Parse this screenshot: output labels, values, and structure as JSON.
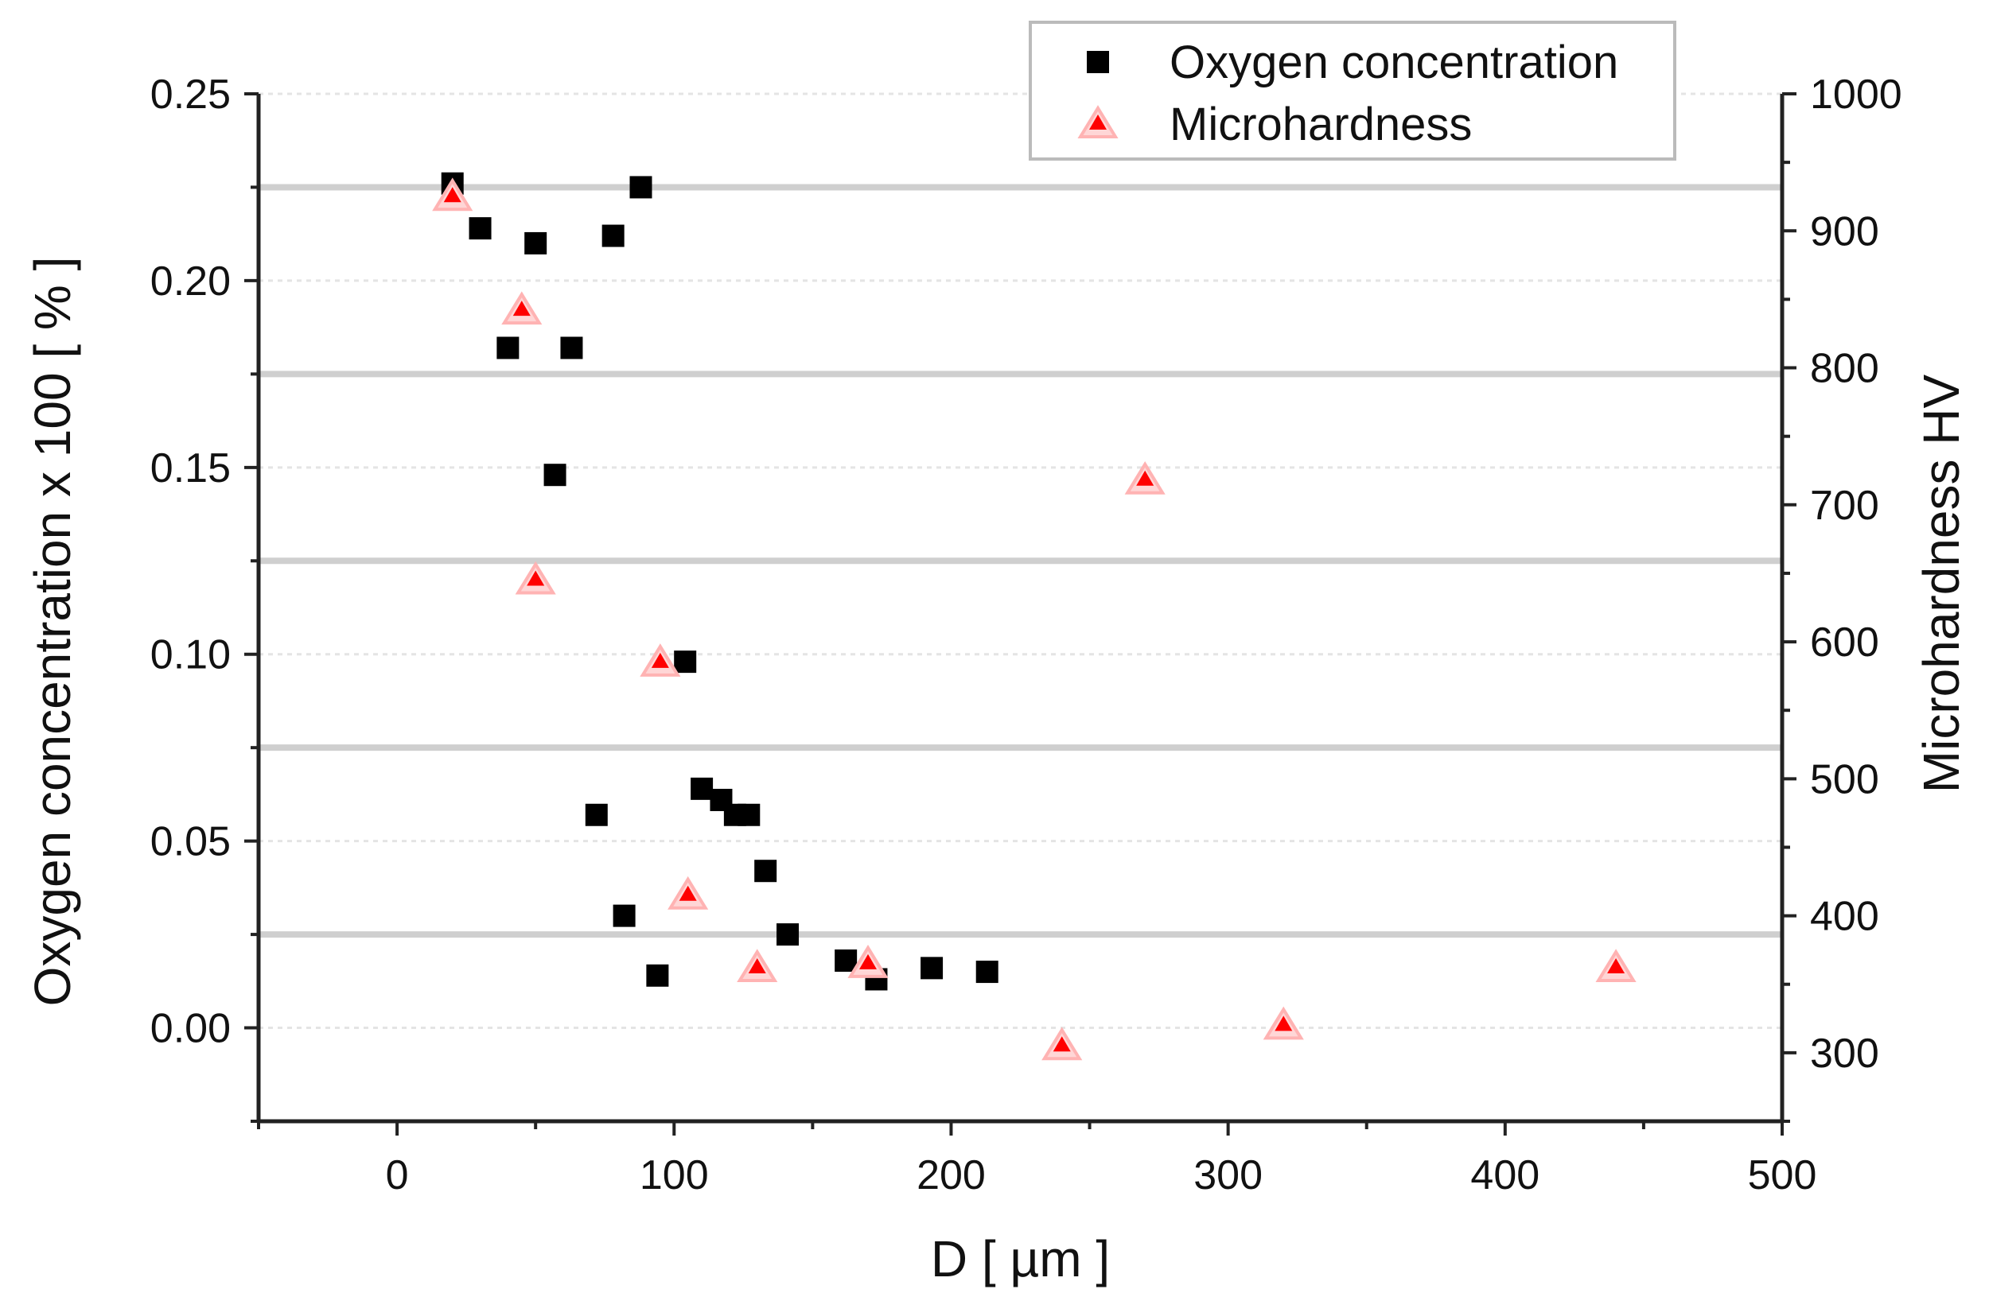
{
  "chart_data": {
    "type": "scatter",
    "title": "",
    "xlabel": "D [ µm ]",
    "ylabel": "Oxygen concentration  x 100  [ % ]",
    "y2label": "Microhardness  HV",
    "xlim": [
      -50,
      500
    ],
    "ylim": [
      -0.025,
      0.25
    ],
    "y2lim": [
      250,
      1000
    ],
    "x_ticks": [
      0,
      100,
      200,
      300,
      400,
      500
    ],
    "x_tick_labels": [
      "0",
      "100",
      "200",
      "300",
      "400",
      "500"
    ],
    "y_ticks": [
      0,
      0.05,
      0.1,
      0.15,
      0.2,
      0.25
    ],
    "y_tick_labels": [
      "0.00",
      "0.05",
      "0.10",
      "0.15",
      "0.20",
      "0.25"
    ],
    "y2_ticks": [
      300,
      400,
      500,
      600,
      700,
      800,
      900,
      1000
    ],
    "y2_tick_labels": [
      "300",
      "400",
      "500",
      "600",
      "700",
      "800",
      "900",
      "1000"
    ],
    "gridlines_y": [
      0.025,
      0.075,
      0.125,
      0.175,
      0.225
    ],
    "legend_position": "top-right",
    "series": [
      {
        "name": "Oxygen concentration",
        "marker": "square",
        "color": "#000000",
        "axis": "left",
        "points": [
          [
            20,
            0.226
          ],
          [
            30,
            0.214
          ],
          [
            40,
            0.182
          ],
          [
            50,
            0.21
          ],
          [
            57,
            0.148
          ],
          [
            63,
            0.182
          ],
          [
            72,
            0.057
          ],
          [
            78,
            0.212
          ],
          [
            82,
            0.03
          ],
          [
            88,
            0.225
          ],
          [
            94,
            0.014
          ],
          [
            104,
            0.098
          ],
          [
            110,
            0.064
          ],
          [
            117,
            0.061
          ],
          [
            122,
            0.057
          ],
          [
            127,
            0.057
          ],
          [
            133,
            0.042
          ],
          [
            141,
            0.025
          ],
          [
            162,
            0.018
          ],
          [
            173,
            0.013
          ],
          [
            193,
            0.016
          ],
          [
            213,
            0.015
          ]
        ]
      },
      {
        "name": "Microhardness",
        "marker": "triangle",
        "color": "#ff0000",
        "axis": "right",
        "points": [
          [
            20,
            925
          ],
          [
            45,
            842
          ],
          [
            50,
            645
          ],
          [
            95,
            585
          ],
          [
            105,
            415
          ],
          [
            130,
            362
          ],
          [
            170,
            365
          ],
          [
            240,
            305
          ],
          [
            270,
            718
          ],
          [
            320,
            320
          ],
          [
            440,
            362
          ]
        ]
      }
    ]
  }
}
